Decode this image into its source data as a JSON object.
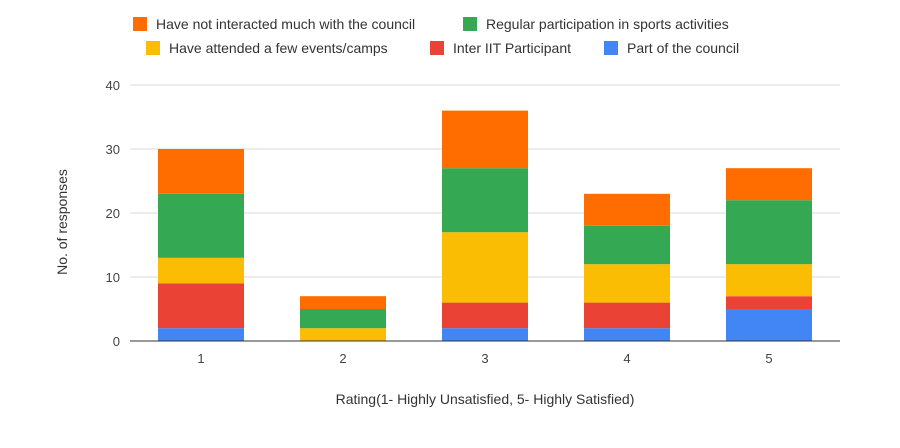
{
  "chart_data": {
    "type": "bar",
    "stacked": true,
    "title": "",
    "xlabel": "Rating(1- Highly Unsatisfied, 5- Highly Satisfied)",
    "ylabel": "No. of responses",
    "ylim": [
      0,
      40
    ],
    "yticks": [
      0,
      10,
      20,
      30,
      40
    ],
    "grid": true,
    "legend_position": "top",
    "categories": [
      "1",
      "2",
      "3",
      "4",
      "5"
    ],
    "series": [
      {
        "name": "Part of the council",
        "color": "#4285F4",
        "values": [
          2,
          0,
          2,
          2,
          5
        ]
      },
      {
        "name": "Inter IIT Participant",
        "color": "#EA4335",
        "values": [
          7,
          0,
          4,
          4,
          2
        ]
      },
      {
        "name": "Have attended a few events/camps",
        "color": "#FBBC04",
        "values": [
          4,
          2,
          11,
          6,
          5
        ]
      },
      {
        "name": "Regular participation in sports activities",
        "color": "#34A853",
        "values": [
          10,
          3,
          10,
          6,
          10
        ]
      },
      {
        "name": "Have not interacted much with the council",
        "color": "#FF6D01",
        "values": [
          7,
          2,
          9,
          5,
          5
        ]
      }
    ],
    "legend_rows": [
      [
        "Have not interacted much with the council",
        "Regular participation in sports activities"
      ],
      [
        "Have attended a few events/camps",
        "Inter IIT Participant",
        "Part of the council"
      ]
    ]
  }
}
